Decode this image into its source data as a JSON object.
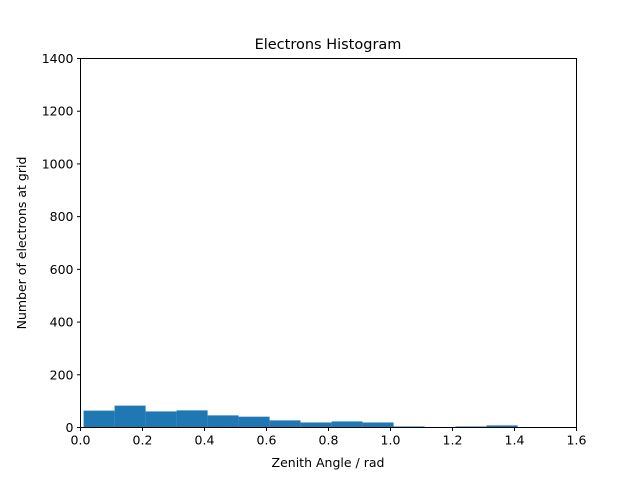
{
  "chart_data": {
    "type": "bar",
    "title": "Electrons Histogram",
    "xlabel": "Zenith Angle / rad",
    "ylabel": "Number of electrons at grid",
    "xlim": [
      0.0,
      1.6
    ],
    "ylim": [
      0,
      1400
    ],
    "xticks": [
      "0.0",
      "0.2",
      "0.4",
      "0.6",
      "0.8",
      "1.0",
      "1.2",
      "1.4",
      "1.6"
    ],
    "yticks": [
      "0",
      "200",
      "400",
      "600",
      "800",
      "1000",
      "1200",
      "1400"
    ],
    "bar_color": "#1f77b4",
    "grid": false,
    "bins": [
      {
        "x0": 0.01,
        "x1": 0.11,
        "value": 64
      },
      {
        "x0": 0.11,
        "x1": 0.21,
        "value": 83
      },
      {
        "x0": 0.21,
        "x1": 0.31,
        "value": 61
      },
      {
        "x0": 0.31,
        "x1": 0.41,
        "value": 65
      },
      {
        "x0": 0.41,
        "x1": 0.51,
        "value": 46
      },
      {
        "x0": 0.51,
        "x1": 0.61,
        "value": 41
      },
      {
        "x0": 0.61,
        "x1": 0.71,
        "value": 27
      },
      {
        "x0": 0.71,
        "x1": 0.81,
        "value": 19
      },
      {
        "x0": 0.81,
        "x1": 0.91,
        "value": 23
      },
      {
        "x0": 0.91,
        "x1": 1.01,
        "value": 19
      },
      {
        "x0": 1.01,
        "x1": 1.11,
        "value": 4
      },
      {
        "x0": 1.11,
        "x1": 1.21,
        "value": 2
      },
      {
        "x0": 1.21,
        "x1": 1.31,
        "value": 4
      },
      {
        "x0": 1.31,
        "x1": 1.41,
        "value": 8
      }
    ]
  }
}
